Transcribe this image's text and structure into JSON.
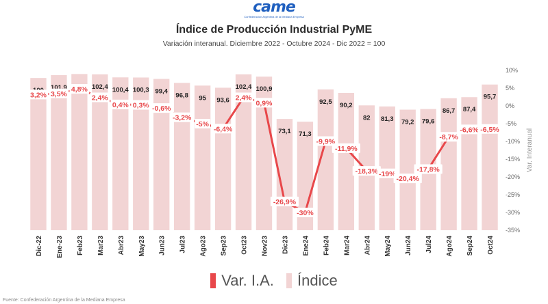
{
  "logo": {
    "text": "came",
    "subtext": "Confederación Argentina de la Mediana Empresa"
  },
  "chart_data": {
    "type": "bar",
    "title": "Índice de Producción Industrial PyME",
    "subtitle": "Variación interanual. Diciembre 2022 - Octubre 2024 - Dic 2022 = 100",
    "categories": [
      "Dic-22",
      "Ene-23",
      "Feb23",
      "Mar23",
      "Abr23",
      "May23",
      "Jun23",
      "Jul23",
      "Ago23",
      "Sep23",
      "Oct23",
      "Nov23",
      "Dic23",
      "Ene24",
      "Feb24",
      "Mar24",
      "Abr24",
      "May24",
      "Jun24",
      "Jul24",
      "Ago24",
      "Sep24",
      "Oct24"
    ],
    "series": [
      {
        "name": "Índice",
        "type": "bar",
        "axis": "left",
        "values": [
          100,
          101.9,
          102.6,
          102.4,
          100.4,
          100.3,
          99.4,
          96.8,
          95,
          93.6,
          102.4,
          100.9,
          73.1,
          71.3,
          92.5,
          90.2,
          82,
          81.3,
          79.2,
          79.6,
          86.7,
          87.4,
          95.7
        ],
        "labels": [
          "100",
          "101,9",
          "102,6",
          "102,4",
          "100,4",
          "100,3",
          "99,4",
          "96,8",
          "95",
          "93,6",
          "102,4",
          "100,9",
          "73,1",
          "71,3",
          "92,5",
          "90,2",
          "82",
          "81,3",
          "79,2",
          "79,6",
          "86,7",
          "87,4",
          "95,7"
        ]
      },
      {
        "name": "Var. I.A.",
        "type": "line",
        "axis": "right",
        "values": [
          3.2,
          3.5,
          4.8,
          2.4,
          0.4,
          0.3,
          -0.6,
          -3.2,
          -5,
          -6.4,
          2.4,
          0.9,
          -26.9,
          -30,
          -9.9,
          -11.9,
          -18.3,
          -19,
          -20.4,
          -17.8,
          -8.7,
          -6.6,
          -6.5
        ],
        "labels": [
          "3,2%",
          "3,5%",
          "4,8%",
          "2,4%",
          "0,4%",
          "0,3%",
          "-0,6%",
          "-3,2%",
          "-5%",
          "-6,4%",
          "2,4%",
          "0,9%",
          "-26,9%",
          "-30%",
          "-9,9%",
          "-11,9%",
          "-18,3%",
          "-19%",
          "-20,4%",
          "-17,8%",
          "-8,7%",
          "-6,6%",
          "-6,5%"
        ]
      }
    ],
    "y2lim": [
      -35,
      10
    ],
    "y2label": "Var. Interanual",
    "y2ticks": [
      "10%",
      "5%",
      "0%",
      "-5%",
      "-10%",
      "-15%",
      "-20%",
      "-25%",
      "-30%",
      "-35%"
    ],
    "legend_position": "bottom",
    "colors": {
      "bar": "#f2d4d4",
      "line": "#e8474a",
      "label_bg": "#ffffff"
    }
  },
  "source_note": "Fuente: Confederación Argentina de la Mediana Empresa"
}
